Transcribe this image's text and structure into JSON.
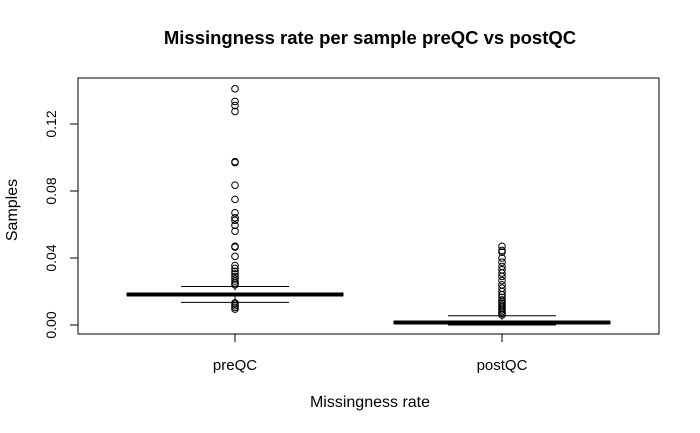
{
  "chart_data": {
    "type": "box",
    "title": "Missingness rate per sample preQC vs postQC",
    "xlabel": "Missingness rate",
    "ylabel": "Samples",
    "categories": [
      "preQC",
      "postQC"
    ],
    "ylim": [
      -0.005,
      0.142
    ],
    "yticks": [
      0.0,
      0.04,
      0.08,
      0.12
    ],
    "ytick_labels": [
      "0.00",
      "0.04",
      "0.08",
      "0.12"
    ],
    "grid": false,
    "boxes": [
      {
        "name": "preQC",
        "whisker_low": 0.0135,
        "q1": 0.0175,
        "median": 0.0182,
        "q3": 0.019,
        "whisker_high": 0.023,
        "outliers": [
          0.0095,
          0.0105,
          0.0115,
          0.0125,
          0.0132,
          0.024,
          0.025,
          0.0262,
          0.0275,
          0.029,
          0.0305,
          0.032,
          0.0338,
          0.0355,
          0.041,
          0.0465,
          0.047,
          0.056,
          0.0595,
          0.0625,
          0.064,
          0.067,
          0.075,
          0.0835,
          0.097,
          0.0975,
          0.1275,
          0.131,
          0.1335,
          0.141
        ]
      },
      {
        "name": "postQC",
        "whisker_low": 0.0,
        "q1": 0.0008,
        "median": 0.0015,
        "q3": 0.0022,
        "whisker_high": 0.0055,
        "outliers": [
          0.006,
          0.007,
          0.008,
          0.009,
          0.01,
          0.011,
          0.012,
          0.013,
          0.014,
          0.015,
          0.0165,
          0.018,
          0.02,
          0.022,
          0.024,
          0.0265,
          0.029,
          0.031,
          0.033,
          0.035,
          0.0375,
          0.04,
          0.0435,
          0.0445,
          0.047
        ]
      }
    ]
  }
}
